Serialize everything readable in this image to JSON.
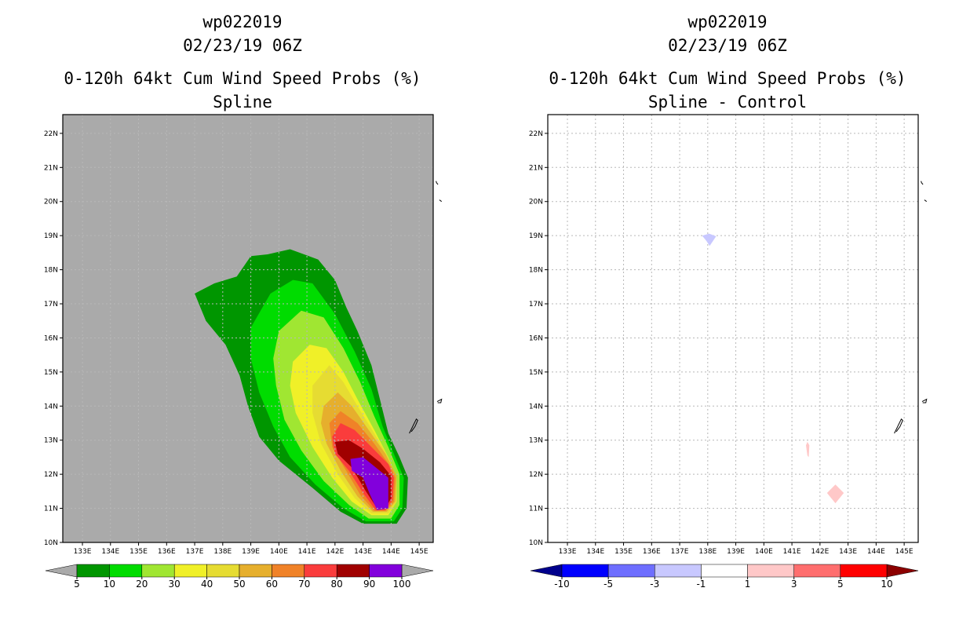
{
  "panels": [
    {
      "id": "spline",
      "storm": "wp022019",
      "datetime": "02/23/19 06Z",
      "title": "0-120h 64kt Cum Wind Speed Probs (%)",
      "subtitle": "Spline",
      "background": "#aaaaaa",
      "colorbar": {
        "labels": [
          "5",
          "10",
          "20",
          "30",
          "40",
          "50",
          "60",
          "70",
          "80",
          "90",
          "100"
        ],
        "colors": [
          "#009600",
          "#00dc00",
          "#a0e632",
          "#f0f028",
          "#e6dc32",
          "#e6af2d",
          "#f08228",
          "#fa3c3c",
          "#a00000",
          "#8200dc"
        ],
        "under_color": "#aaaaaa",
        "over_color": "#aaaaaa"
      }
    },
    {
      "id": "spline-control",
      "storm": "wp022019",
      "datetime": "02/23/19 06Z",
      "title": "0-120h 64kt Cum Wind Speed Probs (%)",
      "subtitle": "Spline - Control",
      "background": "#ffffff",
      "colorbar": {
        "labels": [
          "-10",
          "-5",
          "-3",
          "-1",
          "1",
          "3",
          "5",
          "10"
        ],
        "colors": [
          "#0000ff",
          "#6e6eff",
          "#c8c8ff",
          "#ffffff",
          "#ffc8c8",
          "#ff6e6e",
          "#ff0000"
        ],
        "under_color": "#00008c",
        "over_color": "#8c0000"
      }
    }
  ],
  "axes": {
    "lon_labels": [
      "133E",
      "134E",
      "135E",
      "136E",
      "137E",
      "138E",
      "139E",
      "140E",
      "141E",
      "142E",
      "143E",
      "144E",
      "145E"
    ],
    "lon_values": [
      133,
      134,
      135,
      136,
      137,
      138,
      139,
      140,
      141,
      142,
      143,
      144,
      145
    ],
    "lat_labels": [
      "10N",
      "11N",
      "12N",
      "13N",
      "14N",
      "15N",
      "16N",
      "17N",
      "18N",
      "19N",
      "20N",
      "21N",
      "22N"
    ],
    "lat_values": [
      10,
      11,
      12,
      13,
      14,
      15,
      16,
      17,
      18,
      19,
      20,
      21,
      22
    ],
    "lon_range": [
      132.3,
      145.5
    ],
    "lat_range": [
      10,
      22.55
    ]
  },
  "map_data": {
    "prob_contours": [
      {
        "level": "5",
        "color": "#009600",
        "ring": [
          [
            139.0,
            18.4
          ],
          [
            139.6,
            18.45
          ],
          [
            140.4,
            18.6
          ],
          [
            141.4,
            18.3
          ],
          [
            142.0,
            17.7
          ],
          [
            142.4,
            16.9
          ],
          [
            142.8,
            16.2
          ],
          [
            143.3,
            15.2
          ],
          [
            143.6,
            14.2
          ],
          [
            143.9,
            13.2
          ],
          [
            144.3,
            12.5
          ],
          [
            144.6,
            11.9
          ],
          [
            144.55,
            11.0
          ],
          [
            144.2,
            10.55
          ],
          [
            143.0,
            10.55
          ],
          [
            142.2,
            10.9
          ],
          [
            141.2,
            11.6
          ],
          [
            140.0,
            12.4
          ],
          [
            139.3,
            13.1
          ],
          [
            138.9,
            14.0
          ],
          [
            138.6,
            14.9
          ],
          [
            138.1,
            15.8
          ],
          [
            137.4,
            16.5
          ],
          [
            137.0,
            17.3
          ],
          [
            137.7,
            17.6
          ],
          [
            138.5,
            17.8
          ]
        ]
      },
      {
        "level": "10",
        "color": "#00dc00",
        "ring": [
          [
            139.7,
            17.3
          ],
          [
            140.5,
            17.7
          ],
          [
            141.2,
            17.6
          ],
          [
            142.0,
            16.7
          ],
          [
            142.7,
            15.6
          ],
          [
            143.3,
            14.5
          ],
          [
            143.7,
            13.4
          ],
          [
            144.1,
            12.6
          ],
          [
            144.45,
            11.9
          ],
          [
            144.4,
            11.0
          ],
          [
            144.1,
            10.62
          ],
          [
            143.1,
            10.62
          ],
          [
            142.3,
            11.0
          ],
          [
            141.3,
            11.7
          ],
          [
            140.4,
            12.5
          ],
          [
            139.8,
            13.4
          ],
          [
            139.3,
            14.4
          ],
          [
            139.0,
            15.4
          ],
          [
            139.0,
            16.3
          ]
        ]
      },
      {
        "level": "20",
        "color": "#a0e632",
        "ring": [
          [
            140.0,
            16.2
          ],
          [
            140.8,
            16.8
          ],
          [
            141.6,
            16.6
          ],
          [
            142.3,
            15.7
          ],
          [
            142.9,
            14.7
          ],
          [
            143.4,
            13.7
          ],
          [
            143.9,
            12.8
          ],
          [
            144.3,
            12.0
          ],
          [
            144.3,
            11.1
          ],
          [
            144.0,
            10.7
          ],
          [
            143.2,
            10.7
          ],
          [
            142.5,
            11.1
          ],
          [
            141.6,
            11.8
          ],
          [
            140.8,
            12.7
          ],
          [
            140.2,
            13.6
          ],
          [
            139.9,
            14.6
          ],
          [
            139.8,
            15.4
          ]
        ]
      },
      {
        "level": "30",
        "color": "#f0f028",
        "ring": [
          [
            140.5,
            15.3
          ],
          [
            141.1,
            15.8
          ],
          [
            141.7,
            15.7
          ],
          [
            142.3,
            15.0
          ],
          [
            142.8,
            14.2
          ],
          [
            143.4,
            13.3
          ],
          [
            143.9,
            12.5
          ],
          [
            144.2,
            11.9
          ],
          [
            144.2,
            11.2
          ],
          [
            143.9,
            10.8
          ],
          [
            143.3,
            10.8
          ],
          [
            142.6,
            11.2
          ],
          [
            141.9,
            11.9
          ],
          [
            141.2,
            12.8
          ],
          [
            140.6,
            13.8
          ],
          [
            140.4,
            14.6
          ]
        ]
      },
      {
        "level": "40",
        "color": "#e6dc32",
        "ring": [
          [
            141.2,
            14.6
          ],
          [
            141.8,
            15.2
          ],
          [
            142.3,
            14.7
          ],
          [
            142.8,
            14.0
          ],
          [
            143.4,
            13.2
          ],
          [
            143.9,
            12.5
          ],
          [
            144.2,
            11.9
          ],
          [
            144.2,
            11.2
          ],
          [
            143.9,
            10.85
          ],
          [
            143.3,
            10.85
          ],
          [
            142.7,
            11.3
          ],
          [
            142.1,
            12.0
          ],
          [
            141.5,
            12.9
          ],
          [
            141.2,
            13.8
          ]
        ]
      },
      {
        "level": "50",
        "color": "#e6af2d",
        "ring": [
          [
            141.6,
            14.0
          ],
          [
            142.1,
            14.4
          ],
          [
            142.6,
            14.0
          ],
          [
            143.2,
            13.3
          ],
          [
            143.8,
            12.6
          ],
          [
            144.2,
            11.95
          ],
          [
            144.15,
            11.2
          ],
          [
            143.85,
            10.9
          ],
          [
            143.35,
            10.9
          ],
          [
            142.8,
            11.35
          ],
          [
            142.2,
            12.1
          ],
          [
            141.7,
            12.9
          ],
          [
            141.5,
            13.5
          ]
        ]
      },
      {
        "level": "60",
        "color": "#f08228",
        "ring": [
          [
            141.8,
            13.5
          ],
          [
            142.2,
            13.85
          ],
          [
            142.8,
            13.5
          ],
          [
            143.4,
            12.9
          ],
          [
            144.0,
            12.2
          ],
          [
            144.15,
            11.9
          ],
          [
            144.1,
            11.2
          ],
          [
            143.8,
            10.92
          ],
          [
            143.4,
            10.92
          ],
          [
            142.9,
            11.4
          ],
          [
            142.4,
            12.1
          ],
          [
            141.9,
            12.8
          ]
        ]
      },
      {
        "level": "70",
        "color": "#fa3c3c",
        "ring": [
          [
            141.9,
            13.1
          ],
          [
            142.2,
            13.5
          ],
          [
            142.7,
            13.3
          ],
          [
            143.3,
            12.8
          ],
          [
            143.9,
            12.3
          ],
          [
            144.1,
            11.9
          ],
          [
            144.05,
            11.25
          ],
          [
            143.8,
            10.95
          ],
          [
            143.45,
            10.95
          ],
          [
            143.0,
            11.45
          ],
          [
            142.5,
            12.1
          ],
          [
            142.0,
            12.6
          ]
        ]
      },
      {
        "level": "80",
        "color": "#a00000",
        "ring": [
          [
            142.0,
            12.95
          ],
          [
            142.5,
            13.0
          ],
          [
            143.0,
            12.75
          ],
          [
            143.6,
            12.35
          ],
          [
            144.0,
            11.95
          ],
          [
            144.0,
            11.3
          ],
          [
            143.8,
            11.0
          ],
          [
            143.5,
            11.0
          ],
          [
            143.1,
            11.5
          ],
          [
            142.6,
            12.2
          ],
          [
            142.1,
            12.6
          ]
        ]
      },
      {
        "level": "90",
        "color": "#8200dc",
        "ring": [
          [
            142.55,
            12.45
          ],
          [
            143.0,
            12.5
          ],
          [
            143.6,
            12.1
          ],
          [
            143.9,
            11.9
          ],
          [
            143.9,
            11.0
          ],
          [
            143.5,
            10.95
          ],
          [
            143.25,
            11.4
          ],
          [
            143.0,
            11.9
          ],
          [
            142.6,
            12.1
          ]
        ]
      }
    ],
    "diff_features": [
      {
        "sign": "negative",
        "color": "#c8c8ff",
        "ring": [
          [
            137.8,
            19.0
          ],
          [
            138.05,
            19.06
          ],
          [
            138.3,
            18.98
          ],
          [
            138.07,
            18.7
          ],
          [
            137.95,
            18.85
          ]
        ]
      },
      {
        "sign": "positive",
        "color": "#ffc8c8",
        "ring": [
          [
            141.55,
            12.95
          ],
          [
            141.62,
            12.85
          ],
          [
            141.6,
            12.5
          ],
          [
            141.55,
            12.55
          ],
          [
            141.5,
            12.85
          ]
        ]
      },
      {
        "sign": "positive",
        "color": "#ffc8c8",
        "ring": [
          [
            142.25,
            11.45
          ],
          [
            142.55,
            11.7
          ],
          [
            142.85,
            11.45
          ],
          [
            142.55,
            11.15
          ]
        ]
      }
    ],
    "coastlines": [
      [
        [
          145.67,
          20.5
        ],
        [
          145.62,
          20.55
        ],
        [
          145.6,
          20.6
        ]
      ],
      [
        [
          145.72,
          20.05
        ],
        [
          145.8,
          20.0
        ]
      ],
      [
        [
          145.64,
          14.13
        ],
        [
          145.8,
          14.2
        ],
        [
          145.77,
          14.1
        ],
        [
          145.66,
          14.1
        ]
      ],
      [
        [
          144.65,
          13.2
        ],
        [
          144.9,
          13.62
        ],
        [
          144.95,
          13.58
        ],
        [
          144.85,
          13.4
        ],
        [
          144.72,
          13.25
        ]
      ]
    ]
  }
}
